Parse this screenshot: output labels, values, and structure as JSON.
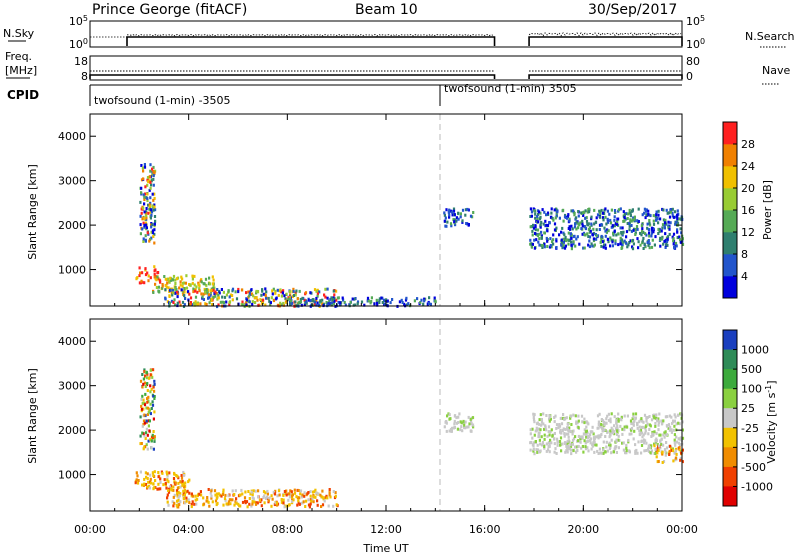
{
  "header": {
    "station": "Prince George (fitACF)",
    "beam": "Beam 10",
    "date": "30/Sep/2017"
  },
  "panels": {
    "nsky_label": "N.Sky",
    "nsearch_label": "N.Search",
    "freq_label_top": "Freq.",
    "freq_label_unit": "[MHz]",
    "nave_label": "Nave",
    "cpid_label": "CPID",
    "noise_ticks_left": [
      "10^5",
      "10^0"
    ],
    "noise_ticks_right": [
      "10^5",
      "10^0"
    ],
    "freq_ticks": [
      "18",
      "8"
    ],
    "nave_ticks": [
      "80",
      "0"
    ],
    "cpid_segments": [
      {
        "label": "twofsound (1-min) -3505",
        "start_hour": 0
      },
      {
        "label": "twofsound (1-min) 3505",
        "start_hour": 14
      }
    ],
    "coverage_gaps": [
      [
        0,
        1.5
      ],
      [
        16.4,
        17.8
      ]
    ],
    "nsky_trace": [
      1.5,
      16.4,
      17.8,
      24
    ],
    "nsearch_trace": [
      1.5,
      16.4,
      17.8,
      24
    ]
  },
  "chart_data": [
    {
      "type": "heatmap",
      "title": "Power",
      "xlabel": "Time UT",
      "ylabel": "Slant Range [km]",
      "x_ticks": [
        "00:00",
        "04:00",
        "08:00",
        "12:00",
        "16:00",
        "20:00",
        "00:00"
      ],
      "xlim": [
        0,
        24
      ],
      "y_ticks": [
        1000,
        2000,
        3000,
        4000
      ],
      "ylim": [
        180,
        4500
      ],
      "colorbar_label": "Power [dB]",
      "colorbar_ticks": [
        "4",
        "8",
        "12",
        "16",
        "20",
        "24",
        "28"
      ],
      "colorbar_colors": [
        "#0000dd",
        "#2255cc",
        "#2f7f6f",
        "#55aa55",
        "#99cc33",
        "#f0c000",
        "#f08000",
        "#ff2020"
      ],
      "regions": [
        {
          "t": [
            2.0,
            2.6
          ],
          "r": [
            1600,
            3400
          ],
          "level": "mixed"
        },
        {
          "t": [
            1.8,
            2.8
          ],
          "r": [
            700,
            1100
          ],
          "level": "high"
        },
        {
          "t": [
            2.5,
            5.0
          ],
          "r": [
            500,
            900
          ],
          "level": "medium"
        },
        {
          "t": [
            3.0,
            10.0
          ],
          "r": [
            200,
            600
          ],
          "level": "mixed"
        },
        {
          "t": [
            8.0,
            14.0
          ],
          "r": [
            200,
            400
          ],
          "level": "low"
        },
        {
          "t": [
            14.3,
            15.5
          ],
          "r": [
            2000,
            2400
          ],
          "level": "low"
        },
        {
          "t": [
            17.8,
            24.0
          ],
          "r": [
            1500,
            2400
          ],
          "level": "low"
        }
      ]
    },
    {
      "type": "heatmap",
      "title": "Velocity",
      "xlabel": "Time UT",
      "ylabel": "Slant Range [km]",
      "x_ticks": [
        "00:00",
        "04:00",
        "08:00",
        "12:00",
        "16:00",
        "20:00",
        "00:00"
      ],
      "xlim": [
        0,
        24
      ],
      "y_ticks": [
        1000,
        2000,
        3000,
        4000
      ],
      "ylim": [
        180,
        4500
      ],
      "colorbar_label": "Velocity [m s^-1]",
      "colorbar_ticks": [
        "1000",
        "500",
        "100",
        "25",
        "-25",
        "-100",
        "-500",
        "-1000"
      ],
      "colorbar_colors": [
        "#1a3fbf",
        "#2e8b57",
        "#3caa3c",
        "#8ad040",
        "#c8c8c8",
        "#f2c200",
        "#f08c00",
        "#f04000",
        "#e00000"
      ],
      "regions": [
        {
          "t": [
            2.0,
            2.6
          ],
          "r": [
            1600,
            3400
          ],
          "level": "mixed"
        },
        {
          "t": [
            1.8,
            4.0
          ],
          "r": [
            700,
            1100
          ],
          "level": "negative"
        },
        {
          "t": [
            3.0,
            10.0
          ],
          "r": [
            300,
            700
          ],
          "level": "negative"
        },
        {
          "t": [
            14.3,
            15.5
          ],
          "r": [
            2000,
            2400
          ],
          "level": "zero"
        },
        {
          "t": [
            17.8,
            24.0
          ],
          "r": [
            1500,
            2400
          ],
          "level": "zero"
        },
        {
          "t": [
            22.8,
            24.0
          ],
          "r": [
            1300,
            1700
          ],
          "level": "negative"
        }
      ]
    }
  ]
}
